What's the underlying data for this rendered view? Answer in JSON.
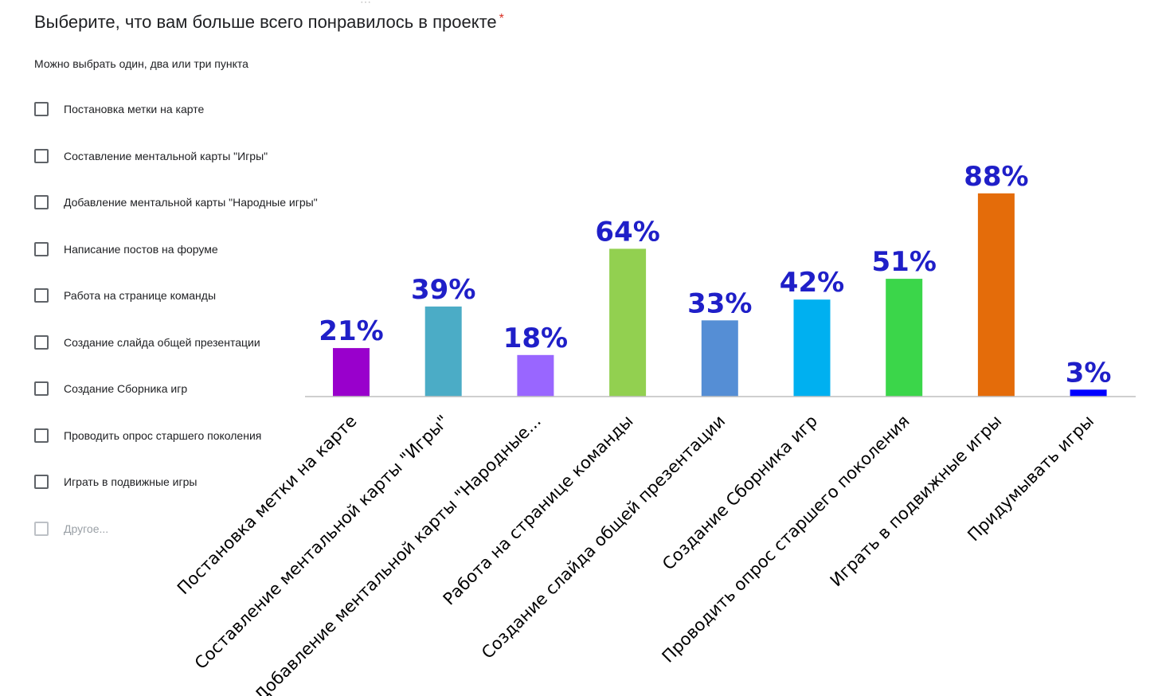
{
  "form": {
    "title": "Выберите, что вам больше всего понравилось в проекте",
    "required_mark": "*",
    "helper": "Можно выбрать один, два или три пункта",
    "options": [
      "Постановка метки на карте",
      "Составление ментальной карты \"Игры\"",
      "Добавление ментальной карты \"Народные игры\"",
      "Написание постов на форуме",
      "Работа на странице команды",
      "Создание слайда общей презентации",
      "Создание Сборника игр",
      "Проводить опрос старшего поколения",
      "Играть в подвижные игры"
    ],
    "other_label": "Другое..."
  },
  "chart_data": {
    "type": "bar",
    "categories": [
      "Постановка метки на карте",
      "Составление ментальной карты \"Игры\"",
      "Добавление ментальной карты \"Народные...",
      "Работа на странице команды",
      "Создание слайда общей презентации",
      "Создание Сборника игр",
      "Проводить опрос старшего поколения",
      "Играть в подвижные игры",
      "Придумывать игры"
    ],
    "values": [
      21,
      39,
      18,
      64,
      33,
      42,
      51,
      88,
      3
    ],
    "value_labels": [
      "21%",
      "39%",
      "18%",
      "64%",
      "33%",
      "42%",
      "51%",
      "88%",
      "3%"
    ],
    "unit": "%",
    "colors": [
      "#9900cc",
      "#4bacc6",
      "#9966ff",
      "#92d050",
      "#558ed5",
      "#00b0f0",
      "#3bd64a",
      "#e46c0a",
      "#0000ff"
    ],
    "label_color": "#1f1fc8",
    "ylim": [
      0,
      100
    ],
    "grid": false,
    "legend": "none"
  }
}
